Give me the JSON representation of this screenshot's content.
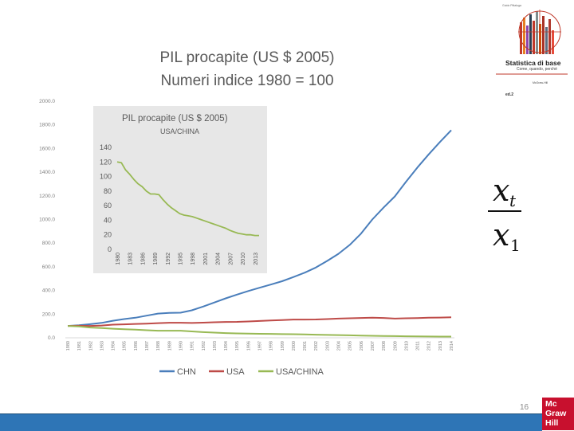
{
  "slide": {
    "title_line1": "PIL procapite (US $ 2005)",
    "title_line2": "Numeri indice 1980 = 100",
    "page_number": "16"
  },
  "book": {
    "author": "Guido Pittaluga",
    "title": "Statistica di base",
    "subtitle": "Come, quando, perché",
    "publisher": "McGraw-Hill",
    "edition": "ed.2"
  },
  "logo": {
    "line1": "Mc",
    "line2": "Graw",
    "line3": "Hill"
  },
  "formula": {
    "numerator_var": "x",
    "numerator_sub": "t",
    "denominator_var": "x",
    "denominator_sub": "1"
  },
  "colors": {
    "CHN": "#4a7ebb",
    "USA": "#be4b48",
    "USA/CHINA": "#98b954"
  },
  "chart_data": [
    {
      "type": "line",
      "title": "",
      "xlabel": "",
      "ylabel": "",
      "ylim": [
        0,
        2000
      ],
      "y_ticks": [
        "0.0",
        "200.0",
        "400.0",
        "600.0",
        "800.0",
        "1000.0",
        "1200.0",
        "1400.0",
        "1600.0",
        "1800.0",
        "2000.0"
      ],
      "x": [
        "1980",
        "1981",
        "1982",
        "1983",
        "1984",
        "1985",
        "1986",
        "1987",
        "1988",
        "1989",
        "1990",
        "1991",
        "1992",
        "1993",
        "1994",
        "1995",
        "1996",
        "1997",
        "1998",
        "1999",
        "2000",
        "2001",
        "2002",
        "2003",
        "2004",
        "2005",
        "2006",
        "2007",
        "2008",
        "2009",
        "2010",
        "2011",
        "2012",
        "2013",
        "2014"
      ],
      "legend_position": "bottom",
      "series": [
        {
          "name": "CHN",
          "values": [
            100,
            106,
            115,
            126,
            144,
            158,
            170,
            187,
            205,
            210,
            212,
            232,
            264,
            298,
            333,
            365,
            395,
            423,
            450,
            478,
            513,
            550,
            594,
            650,
            710,
            785,
            880,
            1000,
            1100,
            1195,
            1320,
            1440,
            1550,
            1655,
            1755
          ]
        },
        {
          "name": "USA",
          "values": [
            100,
            102,
            100,
            104,
            111,
            114,
            117,
            120,
            124,
            127,
            127,
            125,
            128,
            131,
            134,
            135,
            138,
            142,
            147,
            150,
            154,
            154,
            155,
            158,
            162,
            165,
            168,
            170,
            168,
            162,
            165,
            167,
            170,
            171,
            174
          ]
        },
        {
          "name": "USA/CHINA",
          "values": [
            100,
            96,
            87,
            82,
            77,
            72,
            69,
            64,
            60,
            60,
            60,
            54,
            48,
            44,
            40,
            37,
            35,
            34,
            33,
            31,
            30,
            28,
            26,
            24,
            23,
            21,
            19,
            17,
            15,
            14,
            13,
            12,
            11,
            10,
            10
          ]
        }
      ]
    },
    {
      "type": "line",
      "title": "PIL procapite (US $ 2005)",
      "subtitle": "USA/CHINA",
      "ylim": [
        0,
        140
      ],
      "y_ticks": [
        "0",
        "20",
        "40",
        "60",
        "80",
        "100",
        "120",
        "140"
      ],
      "x": [
        "1980",
        "1981",
        "1982",
        "1983",
        "1984",
        "1985",
        "1986",
        "1987",
        "1988",
        "1989",
        "1990",
        "1991",
        "1992",
        "1993",
        "1994",
        "1995",
        "1996",
        "1997",
        "1998",
        "1999",
        "2000",
        "2001",
        "2002",
        "2003",
        "2004",
        "2005",
        "2006",
        "2007",
        "2008",
        "2009",
        "2010",
        "2011",
        "2012",
        "2013",
        "2014"
      ],
      "x_tick_labels": [
        "1980",
        "1983",
        "1986",
        "1989",
        "1992",
        "1995",
        "1998",
        "2001",
        "2004",
        "2007",
        "2010",
        "2013"
      ],
      "series": [
        {
          "name": "USA/CHINA",
          "values": [
            120,
            119,
            109,
            103,
            96,
            90,
            86,
            80,
            76,
            76,
            75,
            68,
            62,
            57,
            53,
            49,
            47,
            46,
            45,
            43,
            41,
            39,
            37,
            35,
            33,
            31,
            29,
            26,
            24,
            22,
            21,
            20,
            20,
            19,
            19
          ]
        }
      ]
    }
  ]
}
